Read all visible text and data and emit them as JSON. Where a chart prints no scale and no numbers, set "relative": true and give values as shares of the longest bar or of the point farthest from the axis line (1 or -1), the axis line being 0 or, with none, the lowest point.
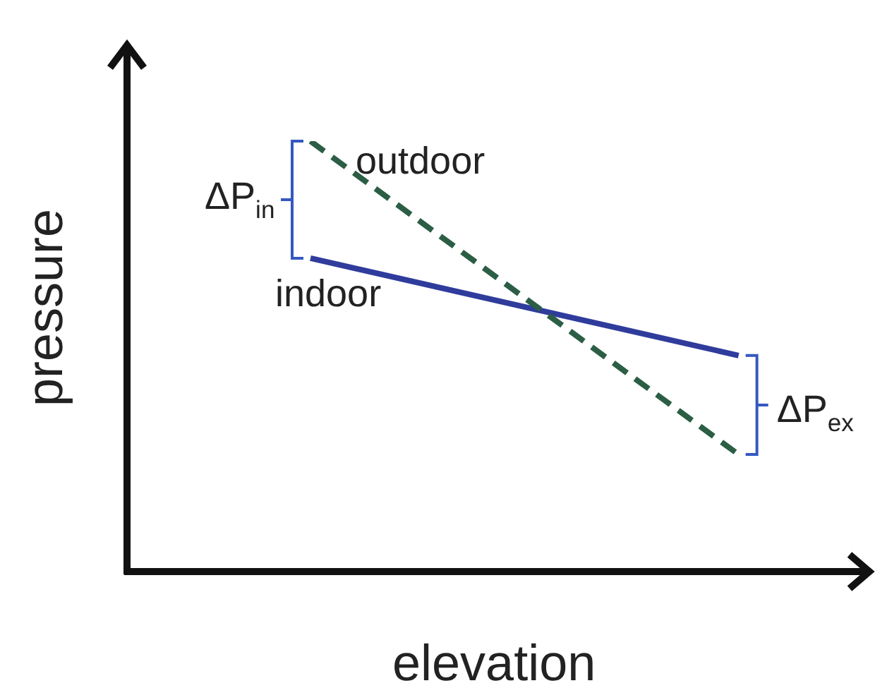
{
  "chart_data": {
    "type": "line",
    "relative": true,
    "xlabel": "elevation",
    "ylabel": "pressure",
    "legend": false,
    "marker": "none",
    "categories": [
      null,
      null,
      null,
      null,
      null,
      null,
      null,
      null,
      null,
      null,
      null,
      null,
      null
    ],
    "series": [
      {
        "name": "outdoor",
        "color": "#2b5e45",
        "line_style": "dashed",
        "values": [
          null,
          null,
          null,
          1,
          null,
          null,
          null,
          null,
          null,
          null,
          0.272,
          null,
          null
        ]
      },
      {
        "name": "indoor",
        "color": "#2f3c9c",
        "line_style": "solid",
        "values": [
          null,
          null,
          null,
          0.728,
          null,
          null,
          null,
          null,
          null,
          null,
          0.502,
          null,
          null
        ]
      }
    ],
    "annotations": [
      "ΔP$_{in}$",
      "ΔP$_{ex}$"
    ]
  }
}
